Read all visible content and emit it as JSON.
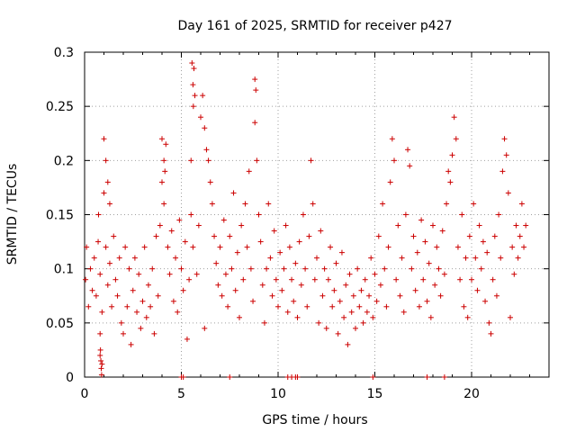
{
  "chart_data": {
    "type": "scatter",
    "title": "Day 161 of 2025, SRMTID for receiver p427",
    "xlabel": "GPS time / hours",
    "ylabel": "SRMTID / TECUs",
    "xlim": [
      0,
      24
    ],
    "ylim": [
      0,
      0.3
    ],
    "grid": true,
    "marker": "+",
    "color": "#cc0000",
    "x_ticks": [
      {
        "value": 0,
        "label": "0"
      },
      {
        "value": 5,
        "label": "5"
      },
      {
        "value": 10,
        "label": "10"
      },
      {
        "value": 15,
        "label": "15"
      },
      {
        "value": 20,
        "label": "20"
      }
    ],
    "y_ticks": [
      {
        "value": 0,
        "label": "0"
      },
      {
        "value": 0.05,
        "label": "0.05"
      },
      {
        "value": 0.1,
        "label": "0.1"
      },
      {
        "value": 0.15,
        "label": "0.15"
      },
      {
        "value": 0.2,
        "label": "0.2"
      },
      {
        "value": 0.25,
        "label": "0.25"
      },
      {
        "value": 0.3,
        "label": "0.3"
      }
    ],
    "points": [
      [
        0.05,
        0.09
      ],
      [
        0.1,
        0.12
      ],
      [
        0.2,
        0.065
      ],
      [
        0.3,
        0.1
      ],
      [
        0.4,
        0.08
      ],
      [
        0.5,
        0.11
      ],
      [
        0.6,
        0.075
      ],
      [
        0.7,
        0.125
      ],
      [
        0.8,
        0.095
      ],
      [
        0.9,
        0.06
      ],
      [
        0.72,
        0.15
      ],
      [
        0.8,
        0.04
      ],
      [
        0.82,
        0.025
      ],
      [
        0.84,
        0.015
      ],
      [
        0.86,
        0.008
      ],
      [
        0.88,
        0.002
      ],
      [
        0.8,
        0.02
      ],
      [
        0.9,
        0.012
      ],
      [
        1.0,
        0.22
      ],
      [
        1.0,
        0.17
      ],
      [
        1.1,
        0.2
      ],
      [
        1.2,
        0.18
      ],
      [
        1.3,
        0.16
      ],
      [
        1.1,
        0.12
      ],
      [
        1.2,
        0.085
      ],
      [
        1.3,
        0.105
      ],
      [
        1.4,
        0.065
      ],
      [
        1.5,
        0.13
      ],
      [
        1.6,
        0.09
      ],
      [
        1.7,
        0.075
      ],
      [
        1.8,
        0.11
      ],
      [
        1.9,
        0.05
      ],
      [
        2.0,
        0.04
      ],
      [
        2.1,
        0.12
      ],
      [
        2.2,
        0.065
      ],
      [
        2.3,
        0.1
      ],
      [
        2.4,
        0.03
      ],
      [
        2.5,
        0.08
      ],
      [
        2.6,
        0.11
      ],
      [
        2.7,
        0.06
      ],
      [
        2.8,
        0.095
      ],
      [
        2.9,
        0.045
      ],
      [
        3.0,
        0.07
      ],
      [
        3.1,
        0.12
      ],
      [
        3.2,
        0.055
      ],
      [
        3.3,
        0.085
      ],
      [
        3.4,
        0.065
      ],
      [
        3.5,
        0.1
      ],
      [
        3.6,
        0.04
      ],
      [
        3.7,
        0.13
      ],
      [
        3.8,
        0.075
      ],
      [
        3.9,
        0.14
      ],
      [
        4.0,
        0.18
      ],
      [
        4.0,
        0.22
      ],
      [
        4.1,
        0.2
      ],
      [
        4.15,
        0.19
      ],
      [
        4.2,
        0.215
      ],
      [
        4.1,
        0.16
      ],
      [
        4.3,
        0.12
      ],
      [
        4.4,
        0.095
      ],
      [
        4.5,
        0.135
      ],
      [
        4.6,
        0.07
      ],
      [
        4.7,
        0.11
      ],
      [
        4.8,
        0.06
      ],
      [
        4.9,
        0.145
      ],
      [
        5.0,
        0.1
      ],
      [
        5.1,
        0.08
      ],
      [
        5.2,
        0.125
      ],
      [
        5.3,
        0.035
      ],
      [
        5.4,
        0.09
      ],
      [
        5.5,
        0.2
      ],
      [
        5.55,
        0.29
      ],
      [
        5.6,
        0.27
      ],
      [
        5.62,
        0.25
      ],
      [
        5.65,
        0.285
      ],
      [
        5.7,
        0.26
      ],
      [
        5.5,
        0.15
      ],
      [
        5.6,
        0.12
      ],
      [
        5.8,
        0.095
      ],
      [
        5.9,
        0.14
      ],
      [
        6.0,
        0.24
      ],
      [
        6.1,
        0.26
      ],
      [
        6.2,
        0.23
      ],
      [
        6.3,
        0.21
      ],
      [
        6.4,
        0.2
      ],
      [
        6.5,
        0.18
      ],
      [
        6.2,
        0.045
      ],
      [
        6.6,
        0.16
      ],
      [
        6.7,
        0.13
      ],
      [
        6.8,
        0.105
      ],
      [
        6.9,
        0.085
      ],
      [
        7.0,
        0.12
      ],
      [
        7.1,
        0.075
      ],
      [
        7.2,
        0.145
      ],
      [
        7.3,
        0.095
      ],
      [
        7.4,
        0.065
      ],
      [
        7.5,
        0.13
      ],
      [
        7.6,
        0.1
      ],
      [
        7.7,
        0.17
      ],
      [
        7.8,
        0.08
      ],
      [
        7.9,
        0.115
      ],
      [
        8.0,
        0.055
      ],
      [
        8.1,
        0.14
      ],
      [
        8.2,
        0.09
      ],
      [
        8.3,
        0.16
      ],
      [
        8.4,
        0.12
      ],
      [
        8.5,
        0.19
      ],
      [
        8.6,
        0.1
      ],
      [
        8.7,
        0.07
      ],
      [
        8.8,
        0.275
      ],
      [
        8.85,
        0.265
      ],
      [
        8.8,
        0.235
      ],
      [
        8.9,
        0.2
      ],
      [
        9.0,
        0.15
      ],
      [
        9.1,
        0.125
      ],
      [
        9.2,
        0.085
      ],
      [
        9.3,
        0.05
      ],
      [
        9.4,
        0.1
      ],
      [
        9.5,
        0.16
      ],
      [
        9.6,
        0.11
      ],
      [
        9.7,
        0.075
      ],
      [
        9.8,
        0.135
      ],
      [
        9.9,
        0.09
      ],
      [
        10.0,
        0.065
      ],
      [
        10.1,
        0.115
      ],
      [
        10.2,
        0.08
      ],
      [
        10.3,
        0.1
      ],
      [
        10.4,
        0.14
      ],
      [
        10.5,
        0.06
      ],
      [
        10.6,
        0.12
      ],
      [
        10.7,
        0.09
      ],
      [
        10.8,
        0.07
      ],
      [
        10.9,
        0.105
      ],
      [
        11.0,
        0.055
      ],
      [
        11.1,
        0.125
      ],
      [
        11.2,
        0.085
      ],
      [
        11.3,
        0.15
      ],
      [
        11.4,
        0.1
      ],
      [
        11.5,
        0.065
      ],
      [
        11.6,
        0.13
      ],
      [
        11.7,
        0.2
      ],
      [
        11.8,
        0.16
      ],
      [
        11.9,
        0.09
      ],
      [
        12.0,
        0.11
      ],
      [
        12.1,
        0.05
      ],
      [
        12.2,
        0.135
      ],
      [
        12.3,
        0.075
      ],
      [
        12.4,
        0.1
      ],
      [
        12.5,
        0.045
      ],
      [
        12.6,
        0.09
      ],
      [
        12.7,
        0.12
      ],
      [
        12.8,
        0.065
      ],
      [
        12.9,
        0.08
      ],
      [
        13.0,
        0.105
      ],
      [
        13.1,
        0.04
      ],
      [
        13.2,
        0.07
      ],
      [
        13.3,
        0.115
      ],
      [
        13.4,
        0.055
      ],
      [
        13.5,
        0.085
      ],
      [
        13.6,
        0.03
      ],
      [
        13.7,
        0.095
      ],
      [
        13.8,
        0.06
      ],
      [
        13.9,
        0.075
      ],
      [
        14.0,
        0.045
      ],
      [
        14.1,
        0.1
      ],
      [
        14.2,
        0.065
      ],
      [
        14.3,
        0.08
      ],
      [
        14.4,
        0.05
      ],
      [
        14.5,
        0.09
      ],
      [
        14.6,
        0.06
      ],
      [
        14.7,
        0.075
      ],
      [
        14.8,
        0.11
      ],
      [
        14.9,
        0.055
      ],
      [
        15.0,
        0.095
      ],
      [
        15.1,
        0.07
      ],
      [
        15.2,
        0.13
      ],
      [
        15.3,
        0.085
      ],
      [
        15.4,
        0.16
      ],
      [
        15.5,
        0.1
      ],
      [
        15.6,
        0.065
      ],
      [
        15.7,
        0.12
      ],
      [
        15.8,
        0.18
      ],
      [
        15.9,
        0.22
      ],
      [
        16.0,
        0.2
      ],
      [
        16.1,
        0.09
      ],
      [
        16.2,
        0.14
      ],
      [
        16.3,
        0.075
      ],
      [
        16.4,
        0.11
      ],
      [
        16.5,
        0.06
      ],
      [
        16.6,
        0.15
      ],
      [
        16.7,
        0.21
      ],
      [
        16.8,
        0.195
      ],
      [
        16.9,
        0.1
      ],
      [
        17.0,
        0.13
      ],
      [
        17.1,
        0.08
      ],
      [
        17.2,
        0.115
      ],
      [
        17.3,
        0.065
      ],
      [
        17.4,
        0.145
      ],
      [
        17.5,
        0.09
      ],
      [
        17.6,
        0.125
      ],
      [
        17.7,
        0.07
      ],
      [
        17.8,
        0.105
      ],
      [
        17.9,
        0.055
      ],
      [
        18.0,
        0.14
      ],
      [
        18.1,
        0.085
      ],
      [
        18.2,
        0.12
      ],
      [
        18.3,
        0.1
      ],
      [
        18.4,
        0.075
      ],
      [
        18.5,
        0.135
      ],
      [
        18.6,
        0.095
      ],
      [
        18.7,
        0.16
      ],
      [
        18.8,
        0.19
      ],
      [
        18.9,
        0.18
      ],
      [
        19.0,
        0.205
      ],
      [
        19.1,
        0.24
      ],
      [
        19.2,
        0.22
      ],
      [
        19.3,
        0.12
      ],
      [
        19.4,
        0.09
      ],
      [
        19.5,
        0.15
      ],
      [
        19.6,
        0.065
      ],
      [
        19.7,
        0.11
      ],
      [
        19.8,
        0.055
      ],
      [
        19.9,
        0.13
      ],
      [
        20.0,
        0.09
      ],
      [
        20.1,
        0.16
      ],
      [
        20.2,
        0.11
      ],
      [
        20.3,
        0.08
      ],
      [
        20.4,
        0.14
      ],
      [
        20.5,
        0.1
      ],
      [
        20.6,
        0.125
      ],
      [
        20.7,
        0.07
      ],
      [
        20.8,
        0.115
      ],
      [
        20.9,
        0.05
      ],
      [
        21.0,
        0.04
      ],
      [
        21.1,
        0.09
      ],
      [
        21.2,
        0.13
      ],
      [
        21.3,
        0.075
      ],
      [
        21.4,
        0.15
      ],
      [
        21.5,
        0.11
      ],
      [
        21.6,
        0.19
      ],
      [
        21.7,
        0.22
      ],
      [
        21.8,
        0.205
      ],
      [
        21.9,
        0.17
      ],
      [
        22.0,
        0.055
      ],
      [
        22.1,
        0.12
      ],
      [
        22.2,
        0.095
      ],
      [
        22.3,
        0.14
      ],
      [
        22.4,
        0.11
      ],
      [
        22.5,
        0.13
      ],
      [
        22.6,
        0.16
      ],
      [
        22.7,
        0.12
      ],
      [
        22.8,
        0.14
      ],
      [
        5.0,
        0.0
      ],
      [
        5.1,
        0.0
      ],
      [
        7.5,
        0.0
      ],
      [
        10.5,
        0.0
      ],
      [
        10.7,
        0.0
      ],
      [
        10.9,
        0.0
      ],
      [
        11.0,
        0.0
      ],
      [
        14.9,
        0.0
      ],
      [
        17.7,
        0.0
      ],
      [
        18.6,
        0.0
      ]
    ]
  }
}
